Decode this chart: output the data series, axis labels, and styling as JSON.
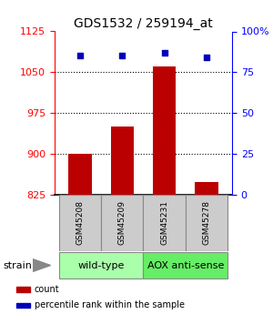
{
  "title": "GDS1532 / 259194_at",
  "samples": [
    "GSM45208",
    "GSM45209",
    "GSM45231",
    "GSM45278"
  ],
  "bar_values": [
    900,
    950,
    1060,
    848
  ],
  "percentile_values": [
    85,
    85,
    87,
    84
  ],
  "left_ylim": [
    825,
    1125
  ],
  "left_yticks": [
    825,
    900,
    975,
    1050,
    1125
  ],
  "right_ylim": [
    0,
    100
  ],
  "right_yticks": [
    0,
    25,
    50,
    75,
    100
  ],
  "right_yticklabels": [
    "0",
    "25",
    "50",
    "75",
    "100%"
  ],
  "bar_color": "#bb0000",
  "dot_color": "#0000bb",
  "bar_width": 0.55,
  "group_colors": [
    "#aaffaa",
    "#66ee66"
  ],
  "group_labels": [
    "wild-type",
    "AOX anti-sense"
  ],
  "strain_label": "strain",
  "legend_items": [
    {
      "color": "#bb0000",
      "label": "count"
    },
    {
      "color": "#0000bb",
      "label": "percentile rank within the sample"
    }
  ],
  "grid_yticks": [
    900,
    975,
    1050
  ],
  "sample_box_color": "#cccccc",
  "left_tick_color": "red",
  "right_tick_color": "blue",
  "title_fontsize": 10,
  "tick_fontsize": 8,
  "legend_fontsize": 7,
  "sample_fontsize": 6.5,
  "group_fontsize": 8
}
